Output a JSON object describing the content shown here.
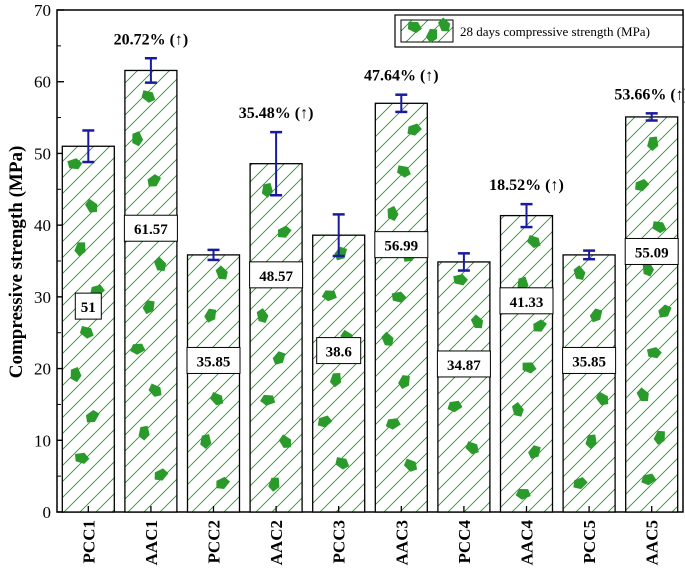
{
  "chart_data": {
    "type": "bar",
    "categories": [
      "PCC1",
      "AAC1",
      "PCC2",
      "AAC2",
      "PCC3",
      "AAC3",
      "PCC4",
      "AAC4",
      "PCC5",
      "AAC5"
    ],
    "series": [
      {
        "name": "28 days compressive strength (MPa)",
        "values": [
          51,
          61.57,
          35.85,
          48.57,
          38.6,
          56.99,
          34.87,
          41.33,
          35.85,
          55.09
        ],
        "error": [
          2.2,
          1.7,
          0.7,
          4.4,
          2.9,
          1.2,
          1.2,
          1.6,
          0.6,
          0.5
        ]
      }
    ],
    "value_labels": [
      "51",
      "61.57",
      "35.85",
      "48.57",
      "38.6",
      "56.99",
      "34.87",
      "41.33",
      "35.85",
      "55.09"
    ],
    "increase_labels": [
      {
        "category": "AAC1",
        "text": "20.72% (↑)"
      },
      {
        "category": "AAC2",
        "text": "35.48% (↑)"
      },
      {
        "category": "AAC3",
        "text": "47.64% (↑)"
      },
      {
        "category": "AAC4",
        "text": "18.52% (↑)"
      },
      {
        "category": "AAC5",
        "text": "53.66% (↑)"
      }
    ],
    "ylabel": "Compressive strength (MPa)",
    "ylim": [
      0,
      70
    ],
    "yticks": [
      0,
      10,
      20,
      30,
      40,
      50,
      60,
      70
    ],
    "legend_position": "top-right",
    "grid": false,
    "colors": {
      "hatch": "#2a9a2a",
      "fill": "#ffffff",
      "error": "#1a1aa0",
      "outline": "#000000"
    }
  }
}
